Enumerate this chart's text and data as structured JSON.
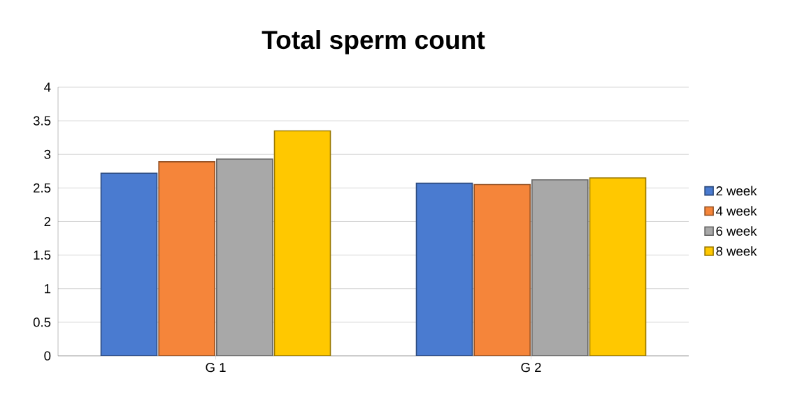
{
  "chart_data": {
    "type": "bar",
    "title": "Total  sperm count",
    "categories": [
      "G 1",
      "G 2"
    ],
    "series": [
      {
        "name": "2 week",
        "color": "#4a7bd0",
        "values": [
          2.72,
          2.57
        ]
      },
      {
        "name": "4 week",
        "color": "#f5853a",
        "values": [
          2.89,
          2.55
        ]
      },
      {
        "name": "6 week",
        "color": "#a8a8a8",
        "values": [
          2.93,
          2.62
        ]
      },
      {
        "name": "8 week",
        "color": "#ffc800",
        "values": [
          3.35,
          2.65
        ]
      }
    ],
    "ylim": [
      0,
      4
    ],
    "yticks": [
      0,
      0.5,
      1,
      1.5,
      2,
      2.5,
      3,
      3.5,
      4
    ],
    "grid": "y",
    "legend": "right"
  }
}
